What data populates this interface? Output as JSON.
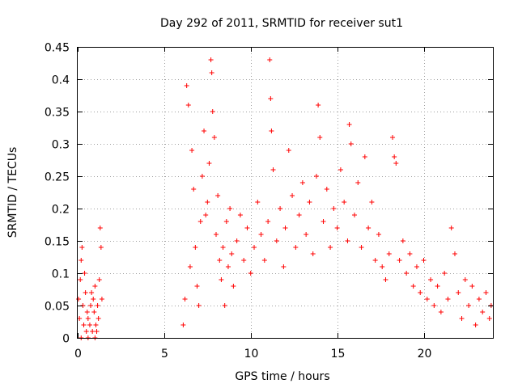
{
  "chart_data": {
    "type": "scatter",
    "title": "Day 292 of 2011, SRMTID for receiver sut1",
    "xlabel": "GPS time / hours",
    "ylabel": "SRMTID / TECUs",
    "xlim": [
      0,
      24
    ],
    "ylim": [
      0,
      0.45
    ],
    "xticks": [
      0,
      5,
      10,
      15,
      20
    ],
    "xtick_labels": [
      "0",
      "5",
      "10",
      "15",
      "20"
    ],
    "yticks": [
      0,
      0.05,
      0.1,
      0.15,
      0.2,
      0.25,
      0.3,
      0.35,
      0.4,
      0.45
    ],
    "ytick_labels": [
      "0",
      "0.05",
      "0.1",
      "0.15",
      "0.2",
      "0.25",
      "0.3",
      "0.35",
      "0.4",
      "0.45"
    ],
    "grid": true,
    "marker": "+",
    "series": [
      {
        "name": "sut1",
        "color": "#ff0000",
        "points": [
          [
            0.05,
            0.06
          ],
          [
            0.1,
            0.03
          ],
          [
            0.15,
            0.09
          ],
          [
            0.2,
            0.12
          ],
          [
            0.25,
            0.14
          ],
          [
            0.3,
            0.05
          ],
          [
            0.35,
            0.02
          ],
          [
            0.4,
            0.1
          ],
          [
            0.45,
            0.07
          ],
          [
            0.5,
            0.01
          ],
          [
            0.55,
            0.04
          ],
          [
            0.6,
            0.03
          ],
          [
            0.7,
            0.02
          ],
          [
            0.75,
            0.05
          ],
          [
            0.8,
            0.07
          ],
          [
            0.85,
            0.01
          ],
          [
            0.9,
            0.06
          ],
          [
            0.95,
            0.04
          ],
          [
            1.0,
            0.08
          ],
          [
            1.05,
            0.02
          ],
          [
            1.1,
            0.01
          ],
          [
            1.15,
            0.05
          ],
          [
            1.2,
            0.03
          ],
          [
            1.25,
            0.09
          ],
          [
            1.3,
            0.17
          ],
          [
            1.35,
            0.14
          ],
          [
            1.4,
            0.06
          ],
          [
            0.2,
            0.0
          ],
          [
            0.6,
            0.0
          ],
          [
            1.0,
            0.0
          ],
          [
            6.1,
            0.02
          ],
          [
            6.2,
            0.06
          ],
          [
            6.3,
            0.39
          ],
          [
            6.4,
            0.36
          ],
          [
            6.5,
            0.11
          ],
          [
            6.6,
            0.29
          ],
          [
            6.7,
            0.23
          ],
          [
            6.8,
            0.14
          ],
          [
            6.9,
            0.08
          ],
          [
            7.0,
            0.05
          ],
          [
            7.1,
            0.18
          ],
          [
            7.2,
            0.25
          ],
          [
            7.3,
            0.32
          ],
          [
            7.4,
            0.19
          ],
          [
            7.5,
            0.21
          ],
          [
            7.6,
            0.27
          ],
          [
            7.7,
            0.43
          ],
          [
            7.75,
            0.41
          ],
          [
            7.8,
            0.35
          ],
          [
            7.9,
            0.31
          ],
          [
            8.0,
            0.16
          ],
          [
            8.1,
            0.22
          ],
          [
            8.2,
            0.12
          ],
          [
            8.3,
            0.09
          ],
          [
            8.4,
            0.14
          ],
          [
            8.5,
            0.05
          ],
          [
            8.6,
            0.18
          ],
          [
            8.7,
            0.11
          ],
          [
            8.8,
            0.2
          ],
          [
            8.9,
            0.13
          ],
          [
            9.0,
            0.08
          ],
          [
            9.2,
            0.15
          ],
          [
            9.4,
            0.19
          ],
          [
            9.6,
            0.12
          ],
          [
            9.8,
            0.17
          ],
          [
            10.0,
            0.1
          ],
          [
            10.2,
            0.14
          ],
          [
            10.4,
            0.21
          ],
          [
            10.6,
            0.16
          ],
          [
            10.8,
            0.12
          ],
          [
            11.0,
            0.18
          ],
          [
            11.1,
            0.43
          ],
          [
            11.15,
            0.37
          ],
          [
            11.2,
            0.32
          ],
          [
            11.3,
            0.26
          ],
          [
            11.5,
            0.15
          ],
          [
            11.7,
            0.2
          ],
          [
            11.9,
            0.11
          ],
          [
            12.0,
            0.17
          ],
          [
            12.2,
            0.29
          ],
          [
            12.4,
            0.22
          ],
          [
            12.6,
            0.14
          ],
          [
            12.8,
            0.19
          ],
          [
            13.0,
            0.24
          ],
          [
            13.2,
            0.16
          ],
          [
            13.4,
            0.21
          ],
          [
            13.6,
            0.13
          ],
          [
            13.8,
            0.25
          ],
          [
            13.9,
            0.36
          ],
          [
            14.0,
            0.31
          ],
          [
            14.2,
            0.18
          ],
          [
            14.4,
            0.23
          ],
          [
            14.6,
            0.14
          ],
          [
            14.8,
            0.2
          ],
          [
            15.0,
            0.17
          ],
          [
            15.2,
            0.26
          ],
          [
            15.4,
            0.21
          ],
          [
            15.6,
            0.15
          ],
          [
            15.7,
            0.33
          ],
          [
            15.8,
            0.3
          ],
          [
            16.0,
            0.19
          ],
          [
            16.2,
            0.24
          ],
          [
            16.4,
            0.14
          ],
          [
            16.6,
            0.28
          ],
          [
            16.8,
            0.17
          ],
          [
            17.0,
            0.21
          ],
          [
            17.2,
            0.12
          ],
          [
            17.4,
            0.16
          ],
          [
            17.6,
            0.11
          ],
          [
            17.8,
            0.09
          ],
          [
            18.0,
            0.13
          ],
          [
            18.2,
            0.31
          ],
          [
            18.3,
            0.28
          ],
          [
            18.4,
            0.27
          ],
          [
            18.6,
            0.12
          ],
          [
            18.8,
            0.15
          ],
          [
            19.0,
            0.1
          ],
          [
            19.2,
            0.13
          ],
          [
            19.4,
            0.08
          ],
          [
            19.6,
            0.11
          ],
          [
            19.8,
            0.07
          ],
          [
            20.0,
            0.12
          ],
          [
            20.2,
            0.06
          ],
          [
            20.4,
            0.09
          ],
          [
            20.6,
            0.05
          ],
          [
            20.8,
            0.08
          ],
          [
            21.0,
            0.04
          ],
          [
            21.2,
            0.1
          ],
          [
            21.4,
            0.06
          ],
          [
            21.6,
            0.17
          ],
          [
            21.8,
            0.13
          ],
          [
            22.0,
            0.07
          ],
          [
            22.2,
            0.03
          ],
          [
            22.4,
            0.09
          ],
          [
            22.6,
            0.05
          ],
          [
            22.8,
            0.08
          ],
          [
            23.0,
            0.02
          ],
          [
            23.2,
            0.06
          ],
          [
            23.4,
            0.04
          ],
          [
            23.6,
            0.07
          ],
          [
            23.8,
            0.03
          ],
          [
            23.9,
            0.05
          ]
        ]
      }
    ]
  }
}
